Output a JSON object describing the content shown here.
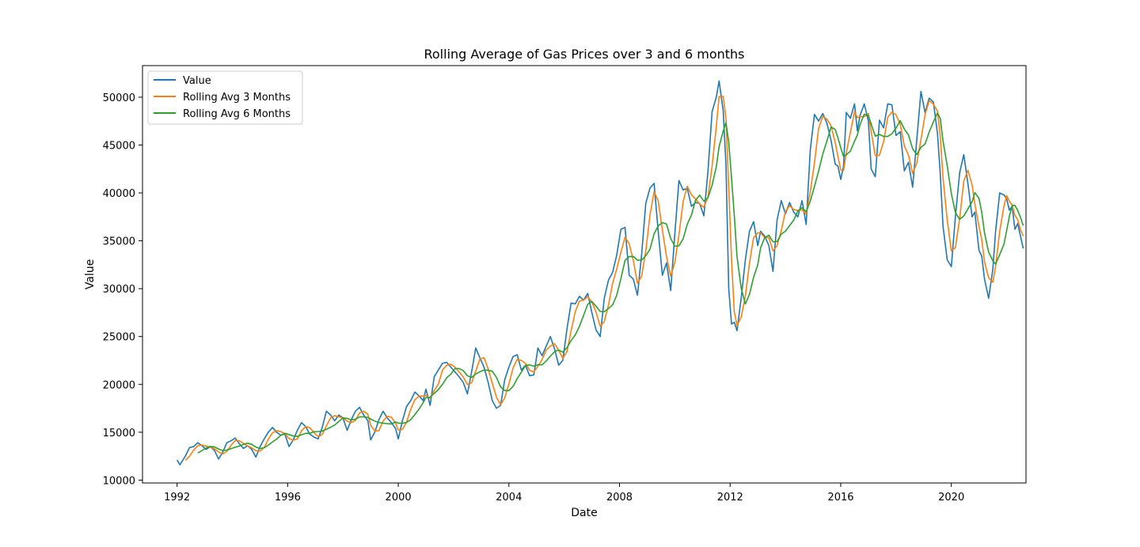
{
  "chart_data": {
    "type": "line",
    "title": "Rolling Average of Gas Prices over 3 and 6 months",
    "xlabel": "Date",
    "ylabel": "Value",
    "xlim": [
      1990.75,
      2022.7
    ],
    "ylim": [
      9700,
      53300
    ],
    "grid": false,
    "legend_position": "top-left",
    "x_ticks": [
      1992,
      1996,
      2000,
      2004,
      2008,
      2012,
      2016,
      2020
    ],
    "x_tick_labels": [
      "1992",
      "1996",
      "2000",
      "2004",
      "2008",
      "2012",
      "2016",
      "2020"
    ],
    "y_ticks": [
      10000,
      15000,
      20000,
      25000,
      30000,
      35000,
      40000,
      45000,
      50000
    ],
    "y_tick_labels": [
      "10000",
      "15000",
      "20000",
      "25000",
      "30000",
      "35000",
      "40000",
      "45000",
      "50000"
    ],
    "series": [
      {
        "name": "Value",
        "color": "#1f77b4",
        "points": [
          [
            1992.0,
            12100
          ],
          [
            1992.1,
            11600
          ],
          [
            1992.3,
            12500
          ],
          [
            1992.45,
            13400
          ],
          [
            1992.6,
            13500
          ],
          [
            1992.75,
            13900
          ],
          [
            1992.9,
            13600
          ],
          [
            1993.05,
            13200
          ],
          [
            1993.2,
            13500
          ],
          [
            1993.35,
            13100
          ],
          [
            1993.5,
            12200
          ],
          [
            1993.65,
            12900
          ],
          [
            1993.8,
            13900
          ],
          [
            1993.95,
            14100
          ],
          [
            1994.1,
            14400
          ],
          [
            1994.25,
            13800
          ],
          [
            1994.4,
            13300
          ],
          [
            1994.55,
            13600
          ],
          [
            1994.7,
            13200
          ],
          [
            1994.85,
            12400
          ],
          [
            1995.0,
            13500
          ],
          [
            1995.15,
            14300
          ],
          [
            1995.3,
            15000
          ],
          [
            1995.45,
            15500
          ],
          [
            1995.6,
            15000
          ],
          [
            1995.75,
            14700
          ],
          [
            1995.9,
            14800
          ],
          [
            1996.05,
            13500
          ],
          [
            1996.2,
            14200
          ],
          [
            1996.35,
            15200
          ],
          [
            1996.5,
            16000
          ],
          [
            1996.65,
            15600
          ],
          [
            1996.8,
            14800
          ],
          [
            1996.95,
            14500
          ],
          [
            1997.1,
            14300
          ],
          [
            1997.25,
            15500
          ],
          [
            1997.4,
            17200
          ],
          [
            1997.55,
            16800
          ],
          [
            1997.7,
            16200
          ],
          [
            1997.85,
            16800
          ],
          [
            1998.0,
            16500
          ],
          [
            1998.15,
            15200
          ],
          [
            1998.3,
            16300
          ],
          [
            1998.45,
            17200
          ],
          [
            1998.6,
            17600
          ],
          [
            1998.75,
            16800
          ],
          [
            1998.9,
            16200
          ],
          [
            1999.0,
            14200
          ],
          [
            1999.15,
            15000
          ],
          [
            1999.3,
            16300
          ],
          [
            1999.45,
            17200
          ],
          [
            1999.6,
            16500
          ],
          [
            1999.75,
            16000
          ],
          [
            1999.9,
            15400
          ],
          [
            2000.0,
            14300
          ],
          [
            2000.15,
            16200
          ],
          [
            2000.3,
            17700
          ],
          [
            2000.45,
            18300
          ],
          [
            2000.6,
            19200
          ],
          [
            2000.75,
            18800
          ],
          [
            2000.9,
            18300
          ],
          [
            2001.0,
            19500
          ],
          [
            2001.15,
            17800
          ],
          [
            2001.3,
            20800
          ],
          [
            2001.45,
            21500
          ],
          [
            2001.6,
            22200
          ],
          [
            2001.75,
            22300
          ],
          [
            2001.9,
            21800
          ],
          [
            2002.05,
            21300
          ],
          [
            2002.2,
            20800
          ],
          [
            2002.35,
            20200
          ],
          [
            2002.5,
            19000
          ],
          [
            2002.65,
            21300
          ],
          [
            2002.8,
            23800
          ],
          [
            2002.95,
            22800
          ],
          [
            2003.1,
            21800
          ],
          [
            2003.25,
            20200
          ],
          [
            2003.4,
            18300
          ],
          [
            2003.55,
            17500
          ],
          [
            2003.7,
            17800
          ],
          [
            2003.85,
            20500
          ],
          [
            2004.0,
            21800
          ],
          [
            2004.15,
            22900
          ],
          [
            2004.3,
            23100
          ],
          [
            2004.45,
            21500
          ],
          [
            2004.6,
            22000
          ],
          [
            2004.75,
            20900
          ],
          [
            2004.9,
            21000
          ],
          [
            2005.05,
            23800
          ],
          [
            2005.2,
            23000
          ],
          [
            2005.35,
            24000
          ],
          [
            2005.5,
            25000
          ],
          [
            2005.65,
            23700
          ],
          [
            2005.8,
            22000
          ],
          [
            2005.95,
            22500
          ],
          [
            2006.1,
            25800
          ],
          [
            2006.25,
            28500
          ],
          [
            2006.4,
            28400
          ],
          [
            2006.55,
            29200
          ],
          [
            2006.7,
            28800
          ],
          [
            2006.85,
            29500
          ],
          [
            2007.0,
            27500
          ],
          [
            2007.15,
            25700
          ],
          [
            2007.3,
            25000
          ],
          [
            2007.45,
            29000
          ],
          [
            2007.6,
            30900
          ],
          [
            2007.75,
            31700
          ],
          [
            2007.9,
            33500
          ],
          [
            2008.05,
            36200
          ],
          [
            2008.2,
            36400
          ],
          [
            2008.35,
            31400
          ],
          [
            2008.5,
            31000
          ],
          [
            2008.65,
            29300
          ],
          [
            2008.8,
            33600
          ],
          [
            2008.95,
            38900
          ],
          [
            2009.1,
            40500
          ],
          [
            2009.25,
            41000
          ],
          [
            2009.4,
            36000
          ],
          [
            2009.55,
            31400
          ],
          [
            2009.7,
            32700
          ],
          [
            2009.85,
            29800
          ],
          [
            2010.0,
            35700
          ],
          [
            2010.15,
            41300
          ],
          [
            2010.3,
            40300
          ],
          [
            2010.45,
            40500
          ],
          [
            2010.6,
            38600
          ],
          [
            2010.75,
            39000
          ],
          [
            2010.9,
            38900
          ],
          [
            2011.05,
            37600
          ],
          [
            2011.2,
            42300
          ],
          [
            2011.35,
            48500
          ],
          [
            2011.5,
            50000
          ],
          [
            2011.6,
            51700
          ],
          [
            2011.75,
            48600
          ],
          [
            2011.85,
            43000
          ],
          [
            2011.95,
            30000
          ],
          [
            2012.05,
            26300
          ],
          [
            2012.15,
            26500
          ],
          [
            2012.25,
            25600
          ],
          [
            2012.4,
            29000
          ],
          [
            2012.55,
            33000
          ],
          [
            2012.7,
            36000
          ],
          [
            2012.85,
            37000
          ],
          [
            2013.0,
            34500
          ],
          [
            2013.1,
            36000
          ],
          [
            2013.25,
            35500
          ],
          [
            2013.4,
            34500
          ],
          [
            2013.55,
            31800
          ],
          [
            2013.7,
            37200
          ],
          [
            2013.85,
            39200
          ],
          [
            2014.0,
            37800
          ],
          [
            2014.15,
            39000
          ],
          [
            2014.3,
            38000
          ],
          [
            2014.45,
            37500
          ],
          [
            2014.6,
            39200
          ],
          [
            2014.75,
            36700
          ],
          [
            2014.9,
            44500
          ],
          [
            2015.05,
            48200
          ],
          [
            2015.2,
            47500
          ],
          [
            2015.35,
            48300
          ],
          [
            2015.5,
            47300
          ],
          [
            2015.65,
            45500
          ],
          [
            2015.8,
            43000
          ],
          [
            2015.9,
            42800
          ],
          [
            2016.0,
            41400
          ],
          [
            2016.1,
            42800
          ],
          [
            2016.2,
            48400
          ],
          [
            2016.35,
            47800
          ],
          [
            2016.5,
            49300
          ],
          [
            2016.6,
            46500
          ],
          [
            2016.7,
            48100
          ],
          [
            2016.85,
            49300
          ],
          [
            2017.0,
            47500
          ],
          [
            2017.1,
            42500
          ],
          [
            2017.25,
            41700
          ],
          [
            2017.4,
            47600
          ],
          [
            2017.55,
            46800
          ],
          [
            2017.7,
            49300
          ],
          [
            2017.85,
            49200
          ],
          [
            2018.0,
            46000
          ],
          [
            2018.15,
            46400
          ],
          [
            2018.3,
            42300
          ],
          [
            2018.45,
            43200
          ],
          [
            2018.6,
            40600
          ],
          [
            2018.75,
            45500
          ],
          [
            2018.9,
            50600
          ],
          [
            2019.05,
            48400
          ],
          [
            2019.2,
            49900
          ],
          [
            2019.35,
            49500
          ],
          [
            2019.5,
            46200
          ],
          [
            2019.6,
            42000
          ],
          [
            2019.7,
            36500
          ],
          [
            2019.85,
            33000
          ],
          [
            2020.0,
            32300
          ],
          [
            2020.15,
            37600
          ],
          [
            2020.3,
            42100
          ],
          [
            2020.45,
            44000
          ],
          [
            2020.6,
            41000
          ],
          [
            2020.75,
            37500
          ],
          [
            2020.85,
            38000
          ],
          [
            2021.0,
            34000
          ],
          [
            2021.1,
            33400
          ],
          [
            2021.2,
            31000
          ],
          [
            2021.35,
            29000
          ],
          [
            2021.5,
            32000
          ],
          [
            2021.6,
            36000
          ],
          [
            2021.75,
            40000
          ],
          [
            2021.9,
            39800
          ],
          [
            2022.0,
            39400
          ],
          [
            2022.1,
            38200
          ],
          [
            2022.2,
            38600
          ],
          [
            2022.3,
            36200
          ],
          [
            2022.4,
            36800
          ],
          [
            2022.5,
            35500
          ],
          [
            2022.6,
            34200
          ]
        ]
      },
      {
        "name": "Rolling Avg 3 Months",
        "color": "#ff7f0e",
        "points": []
      },
      {
        "name": "Rolling Avg 6 Months",
        "color": "#2ca02c",
        "points": []
      }
    ]
  }
}
